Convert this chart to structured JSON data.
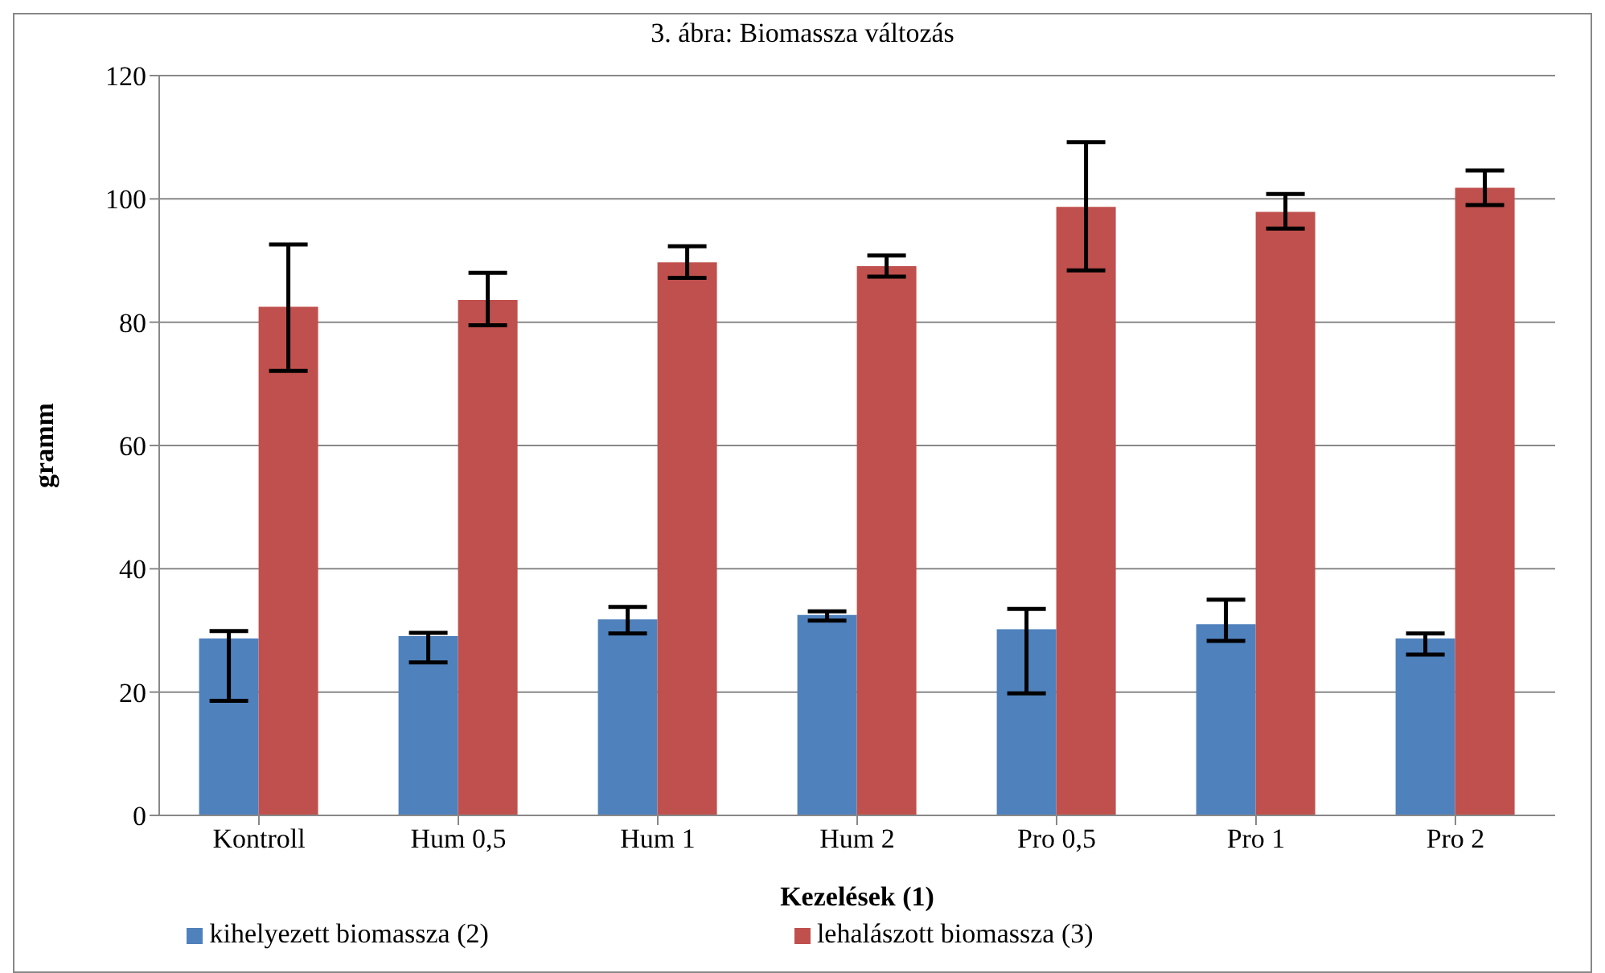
{
  "chart_data": {
    "type": "bar",
    "title": "3. ábra: Biomassza változás",
    "xlabel": "Kezelések (1)",
    "ylabel": "gramm",
    "categories": [
      "Kontroll",
      "Hum 0,5",
      "Hum 1",
      "Hum 2",
      "Pro 0,5",
      "Pro 1",
      "Pro 2"
    ],
    "series": [
      {
        "name": "kihelyezett biomassza (2)",
        "color": "#4f81bd",
        "values": [
          28.7,
          29.1,
          31.8,
          32.5,
          30.2,
          31.0,
          28.7
        ],
        "errors": [
          [
            18.6,
            29.9
          ],
          [
            24.8,
            29.6
          ],
          [
            29.5,
            33.8
          ],
          [
            31.6,
            33.1
          ],
          [
            19.8,
            33.5
          ],
          [
            28.3,
            35.0
          ],
          [
            26.1,
            29.5
          ]
        ]
      },
      {
        "name": "lehalászott biomassza (3)",
        "color": "#c0504d",
        "values": [
          82.5,
          83.6,
          89.7,
          89.1,
          98.7,
          97.9,
          101.8
        ],
        "errors": [
          [
            72.1,
            92.6
          ],
          [
            79.5,
            88.0
          ],
          [
            87.2,
            92.3
          ],
          [
            87.4,
            90.8
          ],
          [
            88.4,
            109.2
          ],
          [
            95.2,
            100.8
          ],
          [
            99.0,
            104.6
          ]
        ]
      }
    ],
    "ylim": [
      0,
      120
    ],
    "yticks": [
      0,
      20,
      40,
      60,
      80,
      100,
      120
    ],
    "grid": "y",
    "legend": "bottom"
  }
}
